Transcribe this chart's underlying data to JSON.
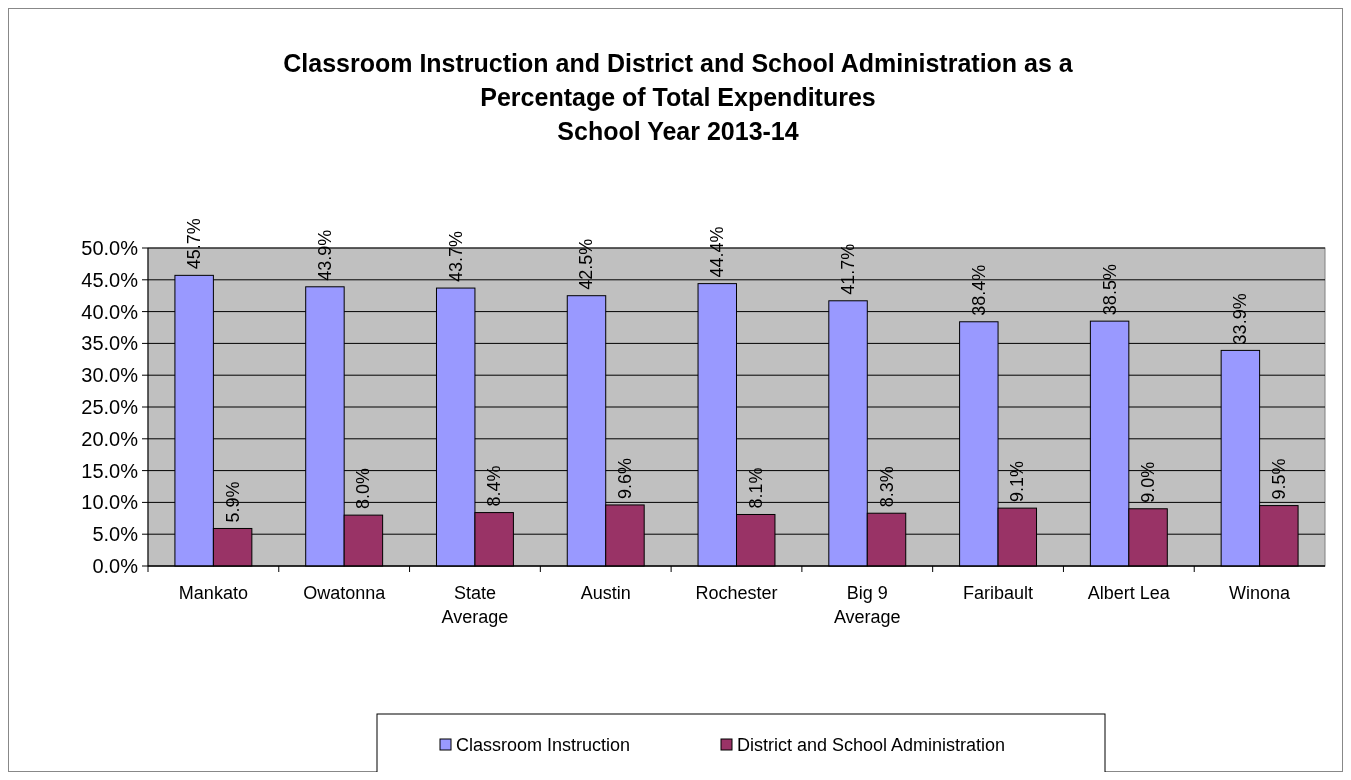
{
  "chart_data": {
    "type": "bar",
    "title": "Classroom Instruction and District and School Administration as a\nPercentage of Total Expenditures\nSchool Year 2013-14",
    "categories": [
      "Mankato",
      "Owatonna",
      "State Average",
      "Austin",
      "Rochester",
      "Big 9 Average",
      "Faribault",
      "Albert Lea",
      "Winona"
    ],
    "series": [
      {
        "name": "Classroom Instruction",
        "color": "#9999ff",
        "values": [
          45.7,
          43.9,
          43.7,
          42.5,
          44.4,
          41.7,
          38.4,
          38.5,
          33.9
        ],
        "value_labels": [
          "45.7%",
          "43.9%",
          "43.7%",
          "42.5%",
          "44.4%",
          "41.7%",
          "38.4%",
          "38.5%",
          "33.9%"
        ]
      },
      {
        "name": "District and School Administration",
        "color": "#993366",
        "values": [
          5.9,
          8.0,
          8.4,
          9.6,
          8.1,
          8.3,
          9.1,
          9.0,
          9.5
        ],
        "value_labels": [
          "5.9%",
          "8.0%",
          "8.4%",
          "9.6%",
          "8.1%",
          "8.3%",
          "9.1%",
          "9.0%",
          "9.5%"
        ]
      }
    ],
    "ylim": [
      0,
      50
    ],
    "yticks": [
      {
        "value": 0,
        "label": "0.0%"
      },
      {
        "value": 5,
        "label": "5.0%"
      },
      {
        "value": 10,
        "label": "10.0%"
      },
      {
        "value": 15,
        "label": "15.0%"
      },
      {
        "value": 20,
        "label": "20.0%"
      },
      {
        "value": 25,
        "label": "25.0%"
      },
      {
        "value": 30,
        "label": "30.0%"
      },
      {
        "value": 35,
        "label": "35.0%"
      },
      {
        "value": 40,
        "label": "40.0%"
      },
      {
        "value": 45,
        "label": "45.0%"
      },
      {
        "value": 50,
        "label": "50.0%"
      }
    ],
    "grid": "y",
    "legend": "bottom"
  }
}
